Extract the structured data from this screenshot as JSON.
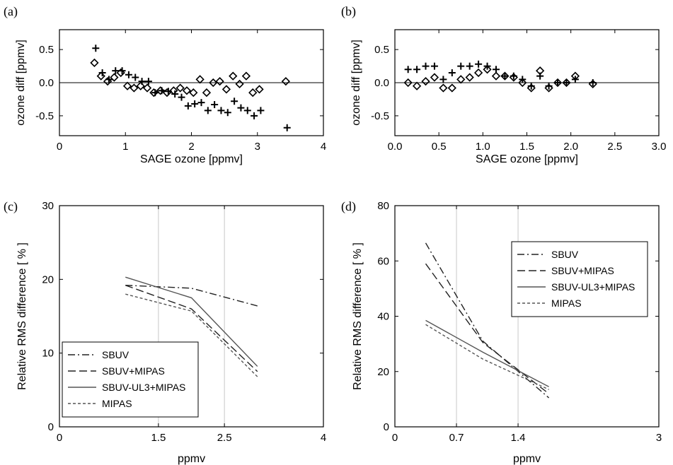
{
  "chart_data": [
    {
      "panel": "(a)",
      "type": "scatter",
      "xlabel": "SAGE ozone [ppmv]",
      "ylabel": "ozone diff [ppmv]",
      "xlim": [
        0,
        4
      ],
      "ylim": [
        -0.8,
        0.8
      ],
      "xticks": [
        "0",
        "1",
        "2",
        "3",
        "4"
      ],
      "yticks": [
        "-0.5",
        "0.0",
        "0.5"
      ],
      "series": [
        {
          "marker": "plus",
          "points": [
            [
              0.55,
              0.52
            ],
            [
              0.65,
              0.15
            ],
            [
              0.75,
              0.05
            ],
            [
              0.85,
              0.18
            ],
            [
              0.95,
              0.18
            ],
            [
              1.05,
              0.12
            ],
            [
              1.15,
              0.08
            ],
            [
              1.25,
              0.02
            ],
            [
              1.35,
              0.02
            ],
            [
              1.45,
              -0.15
            ],
            [
              1.55,
              -0.12
            ],
            [
              1.65,
              -0.13
            ],
            [
              1.75,
              -0.17
            ],
            [
              1.85,
              -0.22
            ],
            [
              1.95,
              -0.35
            ],
            [
              2.05,
              -0.32
            ],
            [
              2.15,
              -0.3
            ],
            [
              2.25,
              -0.42
            ],
            [
              2.35,
              -0.33
            ],
            [
              2.45,
              -0.42
            ],
            [
              2.55,
              -0.45
            ],
            [
              2.65,
              -0.28
            ],
            [
              2.75,
              -0.38
            ],
            [
              2.85,
              -0.42
            ],
            [
              2.95,
              -0.5
            ],
            [
              3.05,
              -0.42
            ],
            [
              3.45,
              -0.68
            ]
          ]
        },
        {
          "marker": "diamond",
          "points": [
            [
              0.53,
              0.3
            ],
            [
              0.63,
              0.1
            ],
            [
              0.73,
              0.02
            ],
            [
              0.83,
              0.08
            ],
            [
              0.93,
              0.15
            ],
            [
              1.03,
              -0.05
            ],
            [
              1.13,
              -0.08
            ],
            [
              1.23,
              -0.05
            ],
            [
              1.33,
              -0.08
            ],
            [
              1.43,
              -0.15
            ],
            [
              1.53,
              -0.12
            ],
            [
              1.63,
              -0.15
            ],
            [
              1.73,
              -0.12
            ],
            [
              1.83,
              -0.08
            ],
            [
              1.93,
              -0.12
            ],
            [
              2.03,
              -0.15
            ],
            [
              2.13,
              0.05
            ],
            [
              2.23,
              -0.15
            ],
            [
              2.33,
              0.0
            ],
            [
              2.43,
              0.02
            ],
            [
              2.53,
              -0.1
            ],
            [
              2.63,
              0.1
            ],
            [
              2.73,
              -0.02
            ],
            [
              2.83,
              0.1
            ],
            [
              2.93,
              -0.15
            ],
            [
              3.03,
              -0.1
            ],
            [
              3.43,
              0.02
            ]
          ]
        }
      ]
    },
    {
      "panel": "(b)",
      "type": "scatter",
      "xlabel": "SAGE ozone [ppmv]",
      "ylabel": "ozone diff [ppmv]",
      "xlim": [
        0,
        3
      ],
      "ylim": [
        -0.8,
        0.8
      ],
      "xticks": [
        "0.0",
        "0.5",
        "1.0",
        "1.5",
        "2.0",
        "2.5",
        "3.0"
      ],
      "yticks": [
        "-0.5",
        "0.0",
        "0.5"
      ],
      "series": [
        {
          "marker": "plus",
          "points": [
            [
              0.15,
              0.2
            ],
            [
              0.25,
              0.2
            ],
            [
              0.35,
              0.25
            ],
            [
              0.45,
              0.25
            ],
            [
              0.55,
              0.05
            ],
            [
              0.65,
              0.15
            ],
            [
              0.75,
              0.25
            ],
            [
              0.85,
              0.25
            ],
            [
              0.95,
              0.28
            ],
            [
              1.05,
              0.25
            ],
            [
              1.15,
              0.2
            ],
            [
              1.25,
              0.1
            ],
            [
              1.35,
              0.1
            ],
            [
              1.45,
              0.05
            ],
            [
              1.55,
              -0.05
            ],
            [
              1.65,
              0.1
            ],
            [
              1.75,
              -0.05
            ],
            [
              1.85,
              0.0
            ],
            [
              1.95,
              0.0
            ],
            [
              2.05,
              0.05
            ],
            [
              2.25,
              0.0
            ]
          ]
        },
        {
          "marker": "diamond",
          "points": [
            [
              0.15,
              0.0
            ],
            [
              0.25,
              -0.05
            ],
            [
              0.35,
              0.02
            ],
            [
              0.45,
              0.08
            ],
            [
              0.55,
              -0.08
            ],
            [
              0.65,
              -0.08
            ],
            [
              0.75,
              0.05
            ],
            [
              0.85,
              0.08
            ],
            [
              0.95,
              0.15
            ],
            [
              1.05,
              0.2
            ],
            [
              1.15,
              0.1
            ],
            [
              1.25,
              0.1
            ],
            [
              1.35,
              0.08
            ],
            [
              1.45,
              0.0
            ],
            [
              1.55,
              -0.08
            ],
            [
              1.65,
              0.18
            ],
            [
              1.75,
              -0.08
            ],
            [
              1.85,
              0.0
            ],
            [
              1.95,
              0.0
            ],
            [
              2.05,
              0.1
            ],
            [
              2.25,
              -0.02
            ]
          ]
        }
      ]
    },
    {
      "panel": "(c)",
      "type": "line",
      "xlabel": "ppmv",
      "ylabel": "Relative RMS difference [ % ]",
      "xlim": [
        0,
        4
      ],
      "ylim": [
        0,
        30
      ],
      "xticks": [
        {
          "v": 0,
          "label": "0"
        },
        {
          "v": 1.5,
          "label": "1.5"
        },
        {
          "v": 2.5,
          "label": "2.5"
        },
        {
          "v": 4,
          "label": "4"
        }
      ],
      "yticks": [
        "0",
        "10",
        "20",
        "30"
      ],
      "grid_x": [
        1.5,
        2.5
      ],
      "legend": "bottom-left",
      "series": [
        {
          "name": "SBUV",
          "style": "dashdot",
          "x": [
            1,
            2,
            3
          ],
          "y": [
            19.2,
            18.8,
            16.4
          ]
        },
        {
          "name": "SBUV+MIPAS",
          "style": "longdash",
          "x": [
            1,
            2,
            3
          ],
          "y": [
            19.2,
            16.0,
            7.5
          ]
        },
        {
          "name": "SBUV-UL3+MIPAS",
          "style": "solid",
          "x": [
            1,
            2,
            3
          ],
          "y": [
            20.3,
            17.5,
            8.2
          ]
        },
        {
          "name": "MIPAS",
          "style": "shortdash",
          "x": [
            1,
            2,
            3
          ],
          "y": [
            18.0,
            15.7,
            6.8
          ]
        }
      ]
    },
    {
      "panel": "(d)",
      "type": "line",
      "xlabel": "ppmv",
      "ylabel": "Relative RMS difference [ % ]",
      "xlim": [
        0,
        3
      ],
      "ylim": [
        0,
        80
      ],
      "xticks": [
        {
          "v": 0,
          "label": "0"
        },
        {
          "v": 0.7,
          "label": "0.7"
        },
        {
          "v": 1.4,
          "label": "1.4"
        },
        {
          "v": 3,
          "label": "3"
        }
      ],
      "yticks": [
        "0",
        "20",
        "40",
        "60",
        "80"
      ],
      "grid_x": [
        0.7,
        1.4
      ],
      "legend": "top-right",
      "series": [
        {
          "name": "SBUV",
          "style": "dashdot",
          "x": [
            0.35,
            1.0,
            1.75
          ],
          "y": [
            66.5,
            31.0,
            10.5
          ]
        },
        {
          "name": "SBUV+MIPAS",
          "style": "longdash",
          "x": [
            0.35,
            1.0,
            1.75
          ],
          "y": [
            59.0,
            30.5,
            12.0
          ]
        },
        {
          "name": "SBUV-UL3+MIPAS",
          "style": "solid",
          "x": [
            0.35,
            1.0,
            1.75
          ],
          "y": [
            38.5,
            27.0,
            14.5
          ]
        },
        {
          "name": "MIPAS",
          "style": "shortdash",
          "x": [
            0.35,
            1.0,
            1.75
          ],
          "y": [
            37.0,
            24.5,
            13.5
          ]
        }
      ]
    }
  ]
}
